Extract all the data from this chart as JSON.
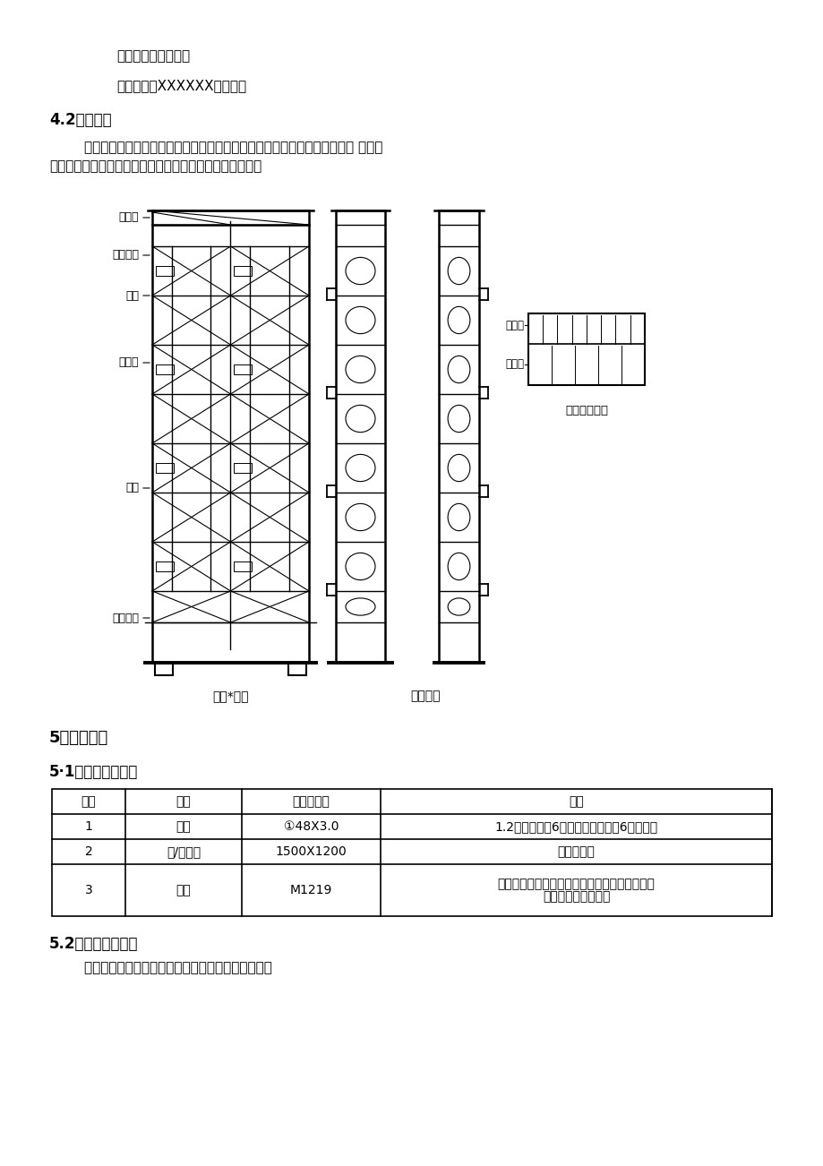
{
  "bg_color": "#ffffff",
  "line1": "设计单位：有限公司",
  "line2": "施工单位：XXXXXX有限公司",
  "section_42_title": "4.2搭设简况",
  "section_42_body_1": "        本工程为新增钢结构雨棚，存在高空作业。为确保相应作业及保证施工的灵 活性，",
  "section_42_body_2": "现场采用门式活动脚手架作为施工作业平台。示意图如下：",
  "section_5_title": "5、施工准备",
  "section_51_title": "5·1材料及工具准备",
  "table_headers": [
    "项序",
    "名称",
    "规格或型号",
    "备注"
  ],
  "table_rows": [
    [
      "1",
      "钢管",
      "①48X3.0",
      "1.2米小横杆、6米立杆及大横杆、6米剪刀撑"
    ],
    [
      "2",
      "竹/木跳板",
      "1500X1200",
      "铺设于平台"
    ],
    [
      "3",
      "门架",
      "M1219",
      "配套连接棒、锁臂、交叉支撑、水平架、挂扣式\n脚手板、底座与托座"
    ]
  ],
  "section_52_title": "5.2作业前准备工作",
  "section_52_body": "        地面应硬化，未硬化地面应采用通长跳板垫设平整。",
  "caption_left": "门架*面圈",
  "caption_middle": "（檩橼）",
  "caption_right": "门架顶层平面",
  "label_lankangzhu": "栏杆柱",
  "label_jiaochazhicheng": "交叉支撑",
  "label_suobei": "锁臂",
  "label_lianjiebang": "连接棒",
  "label_menjia": "门架",
  "label_ketiaodizuo": "可调底座",
  "label_jiashoubang": "脚手板",
  "label_shuipingjia": "水平架"
}
